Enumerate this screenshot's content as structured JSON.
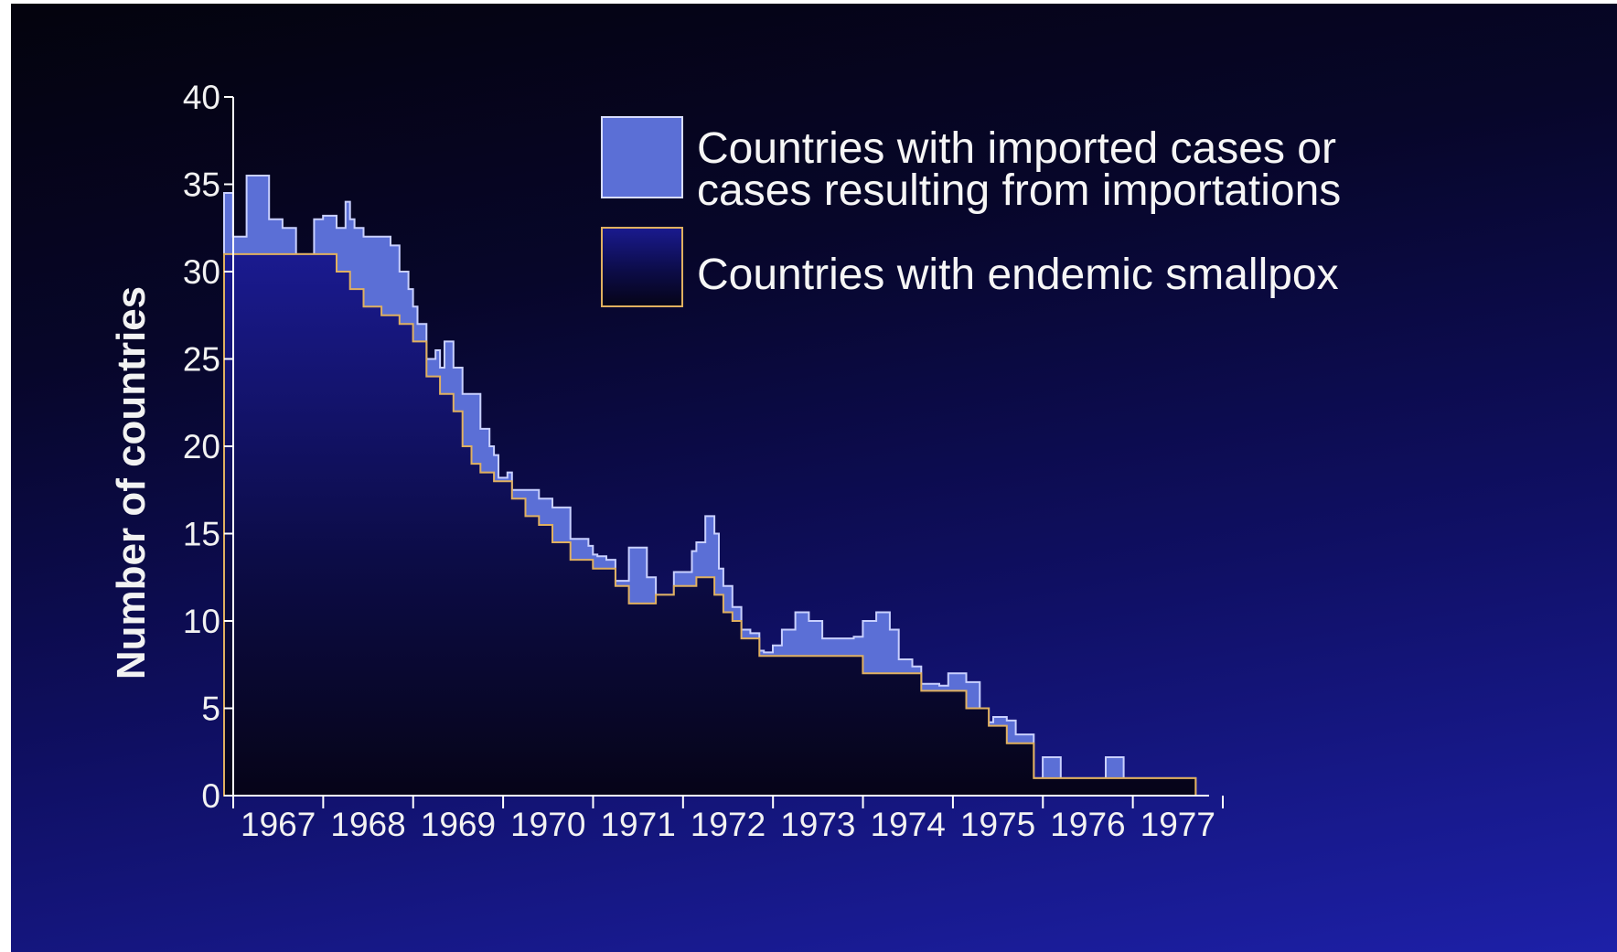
{
  "chart_data": {
    "type": "area",
    "stacked": true,
    "step": true,
    "title": "",
    "xlabel": "",
    "ylabel": "Number of countries",
    "ylim": [
      0,
      40
    ],
    "yticks": [
      0,
      5,
      10,
      15,
      20,
      25,
      30,
      35,
      40
    ],
    "xlim": [
      1967,
      1978
    ],
    "categories": [
      "1967",
      "1968",
      "1969",
      "1970",
      "1971",
      "1972",
      "1973",
      "1974",
      "1975",
      "1976",
      "1977"
    ],
    "grid": false,
    "legend": {
      "placement": "top-right",
      "entries": [
        {
          "key": "imported",
          "label_lines": [
            "Countries with imported cases or",
            "cases resulting from importations"
          ],
          "color": "#5b6fd6"
        },
        {
          "key": "endemic",
          "label_lines": [
            "Countries with endemic smallpox"
          ],
          "color": "#0a0a3a",
          "border": "#e0b060"
        }
      ]
    },
    "series": [
      {
        "key": "endemic",
        "label": "Countries with endemic smallpox",
        "color": "#0a0a3a",
        "x": [
          1967.0,
          1968.0,
          1968.25,
          1968.4,
          1968.55,
          1968.75,
          1968.95,
          1969.1,
          1969.25,
          1969.4,
          1969.55,
          1969.65,
          1969.75,
          1969.85,
          1970.0,
          1970.2,
          1970.35,
          1970.5,
          1970.65,
          1970.85,
          1971.1,
          1971.35,
          1971.5,
          1971.7,
          1971.8,
          1972.0,
          1972.25,
          1972.45,
          1972.55,
          1972.65,
          1972.75,
          1972.95,
          1973.15,
          1973.5,
          1973.65,
          1973.8,
          1974.1,
          1974.75,
          1974.9,
          1975.25,
          1975.4,
          1975.5,
          1975.7,
          1975.8,
          1976.0,
          1976.3,
          1977.8
        ],
        "values": [
          31,
          31,
          30,
          29,
          28,
          27.5,
          27,
          26,
          24,
          23,
          22,
          20,
          19,
          18.5,
          18,
          17,
          16,
          15.5,
          14.5,
          13.5,
          13,
          12,
          11,
          11,
          11.5,
          12,
          12.5,
          11.5,
          10.5,
          10,
          9,
          8,
          8,
          8,
          8,
          8,
          7,
          6,
          6,
          5,
          5,
          4,
          3,
          3,
          1,
          1,
          1
        ]
      },
      {
        "key": "imported",
        "label": "Countries with imported cases or cases resulting from importations",
        "color": "#5b6fd6",
        "x": [
          1967.0,
          1967.1,
          1967.25,
          1967.5,
          1967.65,
          1967.8,
          1968.0,
          1968.1,
          1968.25,
          1968.35,
          1968.45,
          1968.55,
          1968.75,
          1968.85,
          1968.95,
          1969.05,
          1969.15,
          1969.25,
          1969.35,
          1969.45,
          1969.55,
          1969.65,
          1969.75,
          1969.85,
          1969.95,
          1970.05,
          1970.15,
          1970.25,
          1970.35,
          1970.5,
          1970.65,
          1970.85,
          1971.05,
          1971.15,
          1971.25,
          1971.35,
          1971.5,
          1971.7,
          1971.8,
          1972.0,
          1972.2,
          1972.35,
          1972.5,
          1972.65,
          1972.75,
          1972.85,
          1973.0,
          1973.1,
          1973.2,
          1973.35,
          1973.5,
          1973.65,
          1973.8,
          1974.0,
          1974.1,
          1974.25,
          1974.4,
          1974.5,
          1974.65,
          1974.75,
          1974.85,
          1974.95,
          1975.05,
          1975.25,
          1975.4,
          1975.5,
          1975.55,
          1975.7,
          1975.8,
          1976.0,
          1976.1,
          1976.25,
          1976.3,
          1976.8,
          1976.9,
          1977.0,
          1977.1,
          1977.8
        ],
        "values": [
          3.5,
          1,
          4.5,
          2,
          1.5,
          0,
          2,
          2.2,
          2.5,
          4,
          3.5,
          4,
          4.5,
          4,
          3,
          2,
          1,
          1,
          1.5,
          3,
          2.5,
          3,
          4,
          2.5,
          1.5,
          0.2,
          0.5,
          0.5,
          1.5,
          1.5,
          2,
          1.2,
          0.8,
          0.7,
          0.5,
          0.3,
          3.2,
          1.5,
          0,
          0.8,
          2,
          3.5,
          1.5,
          0.8,
          0.5,
          0.3,
          0.2,
          0.6,
          1.5,
          2.5,
          2,
          1,
          1,
          1.1,
          3,
          3.5,
          2.5,
          0.8,
          0.4,
          0.4,
          0.4,
          0.3,
          1,
          1.5,
          0,
          0.2,
          0.5,
          1.3,
          0.5,
          0,
          1.2,
          1.2,
          0,
          1.2,
          1.2,
          0,
          0,
          0
        ]
      }
    ]
  }
}
